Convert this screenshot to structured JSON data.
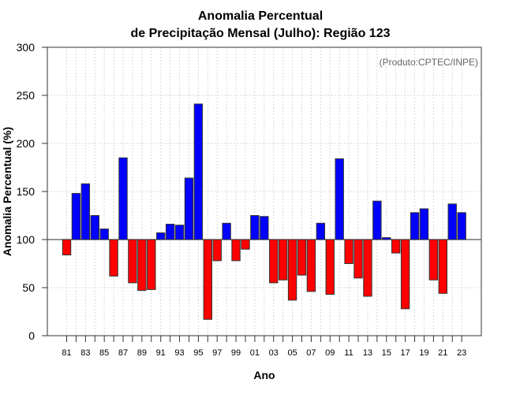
{
  "chart_data": {
    "type": "bar",
    "title_line1": "Anomalia Percentual",
    "title_line2": "de Precipitação Mensal (Julho): Região 123",
    "xlabel": "Ano",
    "ylabel": "Anomalia Percentual (%)",
    "annotation": "(Produto:CPTEC/INPE)",
    "ylim": [
      0,
      300
    ],
    "yticks": [
      0,
      50,
      100,
      150,
      200,
      250,
      300
    ],
    "baseline": 100,
    "grid": true,
    "colors": {
      "above": "#0000ff",
      "below": "#ff0000"
    },
    "categories": [
      "81",
      "82",
      "83",
      "84",
      "85",
      "86",
      "87",
      "88",
      "89",
      "90",
      "91",
      "92",
      "93",
      "94",
      "95",
      "96",
      "97",
      "98",
      "99",
      "00",
      "01",
      "02",
      "03",
      "04",
      "05",
      "06",
      "07",
      "08",
      "09",
      "10",
      "11",
      "12",
      "13",
      "14",
      "15",
      "16",
      "17",
      "18",
      "19",
      "20",
      "21",
      "22",
      "23"
    ],
    "xtick_labels": [
      "81",
      "83",
      "85",
      "87",
      "89",
      "91",
      "93",
      "95",
      "97",
      "99",
      "01",
      "03",
      "05",
      "07",
      "09",
      "11",
      "13",
      "15",
      "17",
      "19",
      "21",
      "23"
    ],
    "values": [
      84,
      148,
      158,
      125,
      111,
      62,
      185,
      55,
      47,
      48,
      107,
      116,
      115,
      164,
      241,
      17,
      78,
      117,
      78,
      90,
      125,
      124,
      55,
      58,
      37,
      63,
      46,
      117,
      43,
      184,
      75,
      60,
      41,
      140,
      102,
      86,
      28,
      128,
      132,
      58,
      44,
      137,
      128
    ]
  }
}
